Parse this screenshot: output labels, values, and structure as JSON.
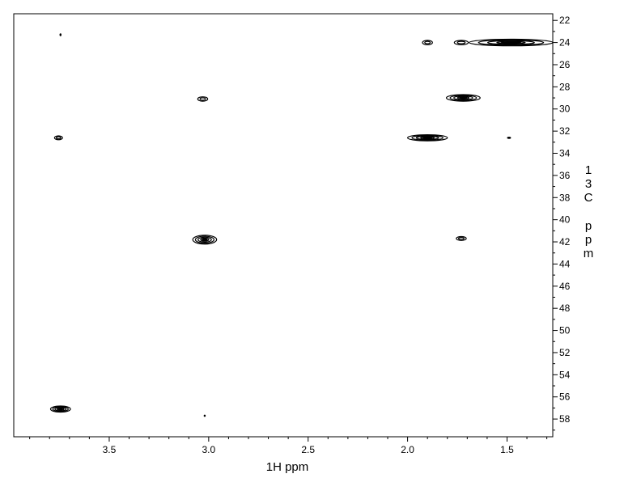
{
  "chart_data": {
    "type": "scatter",
    "subtype": "2D NMR contour plot (HSQC-style)",
    "xlabel": "1H ppm",
    "ylabel": "13C ppm",
    "x_axis": {
      "reversed": true,
      "range": [
        3.98,
        1.27
      ],
      "major_ticks": [
        3.5,
        3.0,
        2.5,
        2.0,
        1.5
      ],
      "major_tick_labels": [
        "3.5",
        "3.0",
        "2.5",
        "2.0",
        "1.5"
      ],
      "minor_tick_step": 0.1
    },
    "y_axis": {
      "reversed": true,
      "position": "right",
      "range": [
        21.4,
        59.6
      ],
      "major_ticks": [
        22,
        24,
        26,
        28,
        30,
        32,
        34,
        36,
        38,
        40,
        42,
        44,
        46,
        48,
        50,
        52,
        54,
        56,
        58
      ],
      "major_tick_labels": [
        "22",
        "24",
        "26",
        "28",
        "30",
        "32",
        "34",
        "36",
        "38",
        "40",
        "42",
        "44",
        "46",
        "48",
        "50",
        "52",
        "54",
        "56",
        "58"
      ],
      "minor_tick_step": 1
    },
    "grid": false,
    "legend": "none",
    "peaks": [
      {
        "x": 3.745,
        "y": 23.3,
        "w": 0.01,
        "h": 0.25,
        "strength": "dot"
      },
      {
        "x": 3.755,
        "y": 32.6,
        "w": 0.04,
        "h": 0.35,
        "strength": "weak"
      },
      {
        "x": 3.745,
        "y": 57.1,
        "w": 0.1,
        "h": 0.55,
        "strength": "strong"
      },
      {
        "x": 3.03,
        "y": 29.1,
        "w": 0.05,
        "h": 0.4,
        "strength": "weak"
      },
      {
        "x": 3.02,
        "y": 41.8,
        "w": 0.12,
        "h": 0.8,
        "strength": "strong"
      },
      {
        "x": 3.02,
        "y": 57.7,
        "w": 0.01,
        "h": 0.2,
        "strength": "dot"
      },
      {
        "x": 1.9,
        "y": 24.0,
        "w": 0.05,
        "h": 0.4,
        "strength": "weak"
      },
      {
        "x": 1.9,
        "y": 32.6,
        "w": 0.2,
        "h": 0.55,
        "strength": "strong"
      },
      {
        "x": 1.73,
        "y": 24.0,
        "w": 0.07,
        "h": 0.4,
        "strength": "weak"
      },
      {
        "x": 1.72,
        "y": 29.0,
        "w": 0.17,
        "h": 0.6,
        "strength": "strong"
      },
      {
        "x": 1.73,
        "y": 41.7,
        "w": 0.05,
        "h": 0.35,
        "strength": "weak"
      },
      {
        "x": 1.48,
        "y": 24.0,
        "w": 0.42,
        "h": 0.6,
        "strength": "strong"
      },
      {
        "x": 1.49,
        "y": 32.6,
        "w": 0.02,
        "h": 0.2,
        "strength": "dot"
      }
    ],
    "colors": {
      "contour": "#000000",
      "frame": "#000000",
      "background": "#ffffff"
    }
  }
}
